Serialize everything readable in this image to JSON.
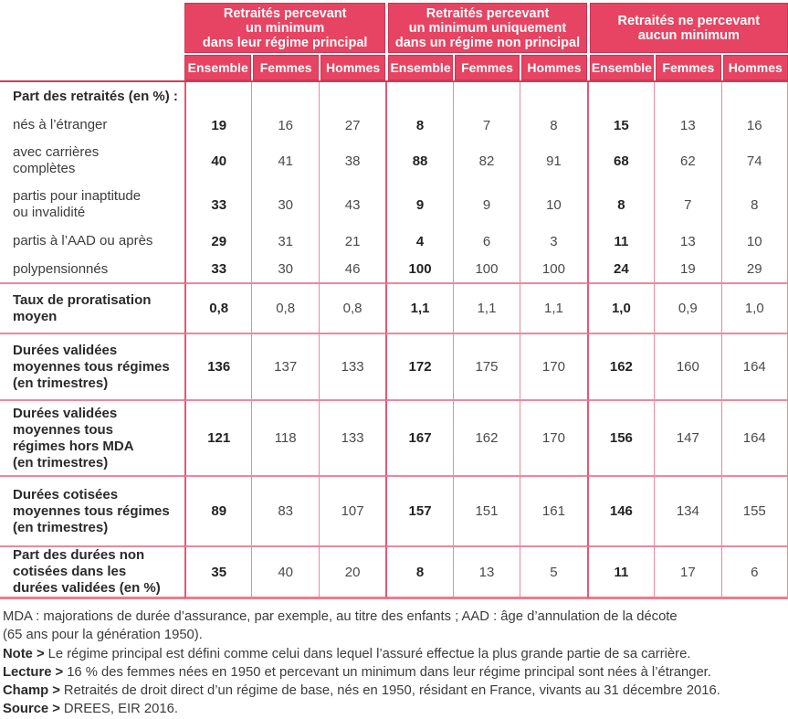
{
  "colors": {
    "header_red": "#e64462",
    "rule_dark": "#c93e58",
    "line_pink": "#f0879b",
    "line_group": "#e25875",
    "bottom_rule": "#ec7a90"
  },
  "header": {
    "groups": [
      {
        "title": "Retraités percevant\nun minimum\ndans leur régime principal",
        "cols": [
          "Ensemble",
          "Femmes",
          "Hommes"
        ]
      },
      {
        "title": "Retraités percevant\nun minimum uniquement\ndans un régime non principal",
        "cols": [
          "Ensemble",
          "Femmes",
          "Hommes"
        ]
      },
      {
        "title": "Retraités ne percevant\naucun minimum",
        "cols": [
          "Ensemble",
          "Femmes",
          "Hommes"
        ]
      }
    ]
  },
  "rows": [
    {
      "label": "Part des retraités (en %) :",
      "style": "section",
      "values": [
        "",
        "",
        "",
        "",
        "",
        "",
        "",
        "",
        ""
      ]
    },
    {
      "label": "nés à l’étranger",
      "style": "sub",
      "values": [
        "19",
        "16",
        "27",
        "8",
        "7",
        "8",
        "15",
        "13",
        "16"
      ]
    },
    {
      "label": "avec carrières\ncomplètes",
      "style": "sub",
      "values": [
        "40",
        "41",
        "38",
        "88",
        "82",
        "91",
        "68",
        "62",
        "74"
      ]
    },
    {
      "label": "partis pour inaptitude\nou invalidité",
      "style": "sub",
      "values": [
        "33",
        "30",
        "43",
        "9",
        "9",
        "10",
        "8",
        "7",
        "8"
      ]
    },
    {
      "label": "partis à l’AAD ou après",
      "style": "sub",
      "values": [
        "29",
        "31",
        "21",
        "4",
        "6",
        "3",
        "11",
        "13",
        "10"
      ]
    },
    {
      "label": "polypensionnés",
      "style": "sub",
      "values": [
        "33",
        "30",
        "46",
        "100",
        "100",
        "100",
        "24",
        "19",
        "29"
      ]
    },
    {
      "label": "Taux de proratisation\nmoyen",
      "style": "major",
      "values": [
        "0,8",
        "0,8",
        "0,8",
        "1,1",
        "1,1",
        "1,1",
        "1,0",
        "0,9",
        "1,0"
      ]
    },
    {
      "label": "Durées validées\nmoyennes tous régimes\n(en trimestres)",
      "style": "major",
      "values": [
        "136",
        "137",
        "133",
        "172",
        "175",
        "170",
        "162",
        "160",
        "164"
      ]
    },
    {
      "label": "Durées validées\nmoyennes tous\nrégimes hors MDA\n(en trimestres)",
      "style": "major",
      "values": [
        "121",
        "118",
        "133",
        "167",
        "162",
        "170",
        "156",
        "147",
        "164"
      ]
    },
    {
      "label": "Durées cotisées\nmoyennes tous régimes\n(en trimestres)",
      "style": "major",
      "values": [
        "89",
        "83",
        "107",
        "157",
        "151",
        "161",
        "146",
        "134",
        "155"
      ]
    },
    {
      "label": "Part des durées non\ncotisées dans les\ndurées validées (en %)",
      "style": "major",
      "values": [
        "35",
        "40",
        "20",
        "8",
        "13",
        "5",
        "11",
        "17",
        "6"
      ]
    }
  ],
  "notes": {
    "mda": "MDA : majorations de durée d’assurance, par exemple, au titre des enfants ;  AAD : âge d’annulation de la décote\n(65 ans pour la génération 1950).",
    "items": [
      {
        "prefix": "Note >",
        "text": "Le régime principal est défini comme celui dans lequel l’assuré effectue la plus grande partie de sa carrière."
      },
      {
        "prefix": "Lecture >",
        "text": "16 % des femmes nées en 1950 et percevant un minimum dans leur régime principal sont nées à l’étranger."
      },
      {
        "prefix": "Champ >",
        "text": "Retraités de droit direct d’un régime de base, nés en 1950, résidant en France, vivants au 31 décembre 2016."
      },
      {
        "prefix": "Source >",
        "text": "DREES, EIR 2016."
      }
    ]
  }
}
